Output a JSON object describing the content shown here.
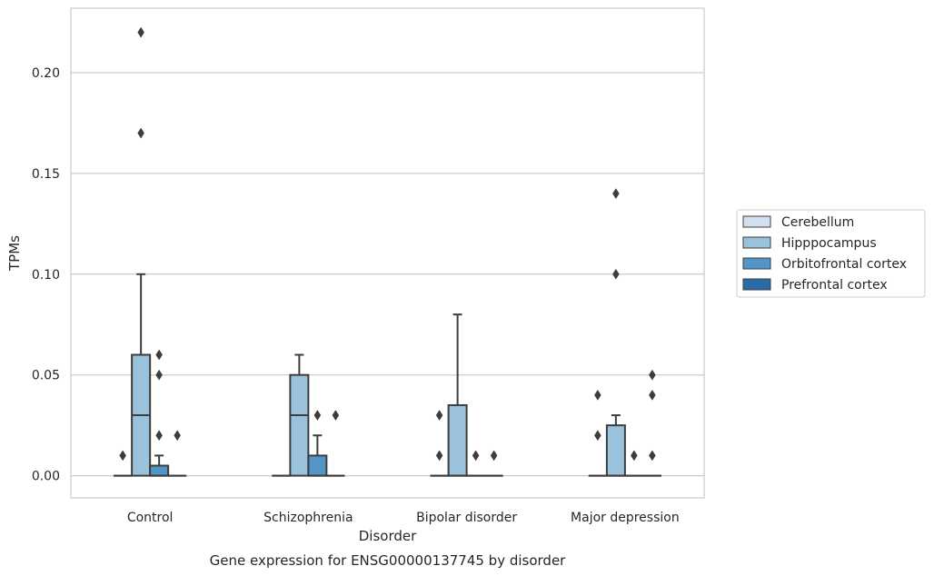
{
  "chart_data": {
    "type": "box",
    "title": "",
    "caption": "Gene expression for ENSG00000137745 by disorder",
    "xlabel": "Disorder",
    "ylabel": "TPMs",
    "ylim": [
      -0.011,
      0.232
    ],
    "yticks": [
      0.0,
      0.05,
      0.1,
      0.15,
      0.2
    ],
    "ytick_labels": [
      "0.00",
      "0.05",
      "0.10",
      "0.15",
      "0.20"
    ],
    "grid": true,
    "legend_position": "right",
    "categories": [
      "Control",
      "Schizophrenia",
      "Bipolar disorder",
      "Major depression"
    ],
    "series": [
      {
        "name": "Cerebellum",
        "color": "#d2e1ef",
        "boxes": [
          {
            "q1": 0,
            "median": 0,
            "q3": 0,
            "whisker_low": 0,
            "whisker_high": 0,
            "outliers": [
              0.01
            ]
          },
          {
            "q1": 0,
            "median": 0,
            "q3": 0,
            "whisker_low": 0,
            "whisker_high": 0,
            "outliers": []
          },
          {
            "q1": 0,
            "median": 0,
            "q3": 0,
            "whisker_low": 0,
            "whisker_high": 0,
            "outliers": [
              0.01,
              0.03
            ]
          },
          {
            "q1": 0,
            "median": 0,
            "q3": 0,
            "whisker_low": 0,
            "whisker_high": 0,
            "outliers": [
              0.02,
              0.04
            ]
          }
        ]
      },
      {
        "name": "Hipppocampus",
        "color": "#9ac2dc",
        "boxes": [
          {
            "q1": 0,
            "median": 0.03,
            "q3": 0.06,
            "whisker_low": 0,
            "whisker_high": 0.1,
            "outliers": [
              0.17,
              0.22
            ]
          },
          {
            "q1": 0,
            "median": 0.03,
            "q3": 0.05,
            "whisker_low": 0,
            "whisker_high": 0.06,
            "outliers": []
          },
          {
            "q1": 0,
            "median": 0,
            "q3": 0.035,
            "whisker_low": 0,
            "whisker_high": 0.08,
            "outliers": []
          },
          {
            "q1": 0,
            "median": 0,
            "q3": 0.025,
            "whisker_low": 0,
            "whisker_high": 0.03,
            "outliers": [
              0.1,
              0.14
            ]
          }
        ]
      },
      {
        "name": "Orbitofrontal cortex",
        "color": "#5395c6",
        "boxes": [
          {
            "q1": 0,
            "median": 0,
            "q3": 0.005,
            "whisker_low": 0,
            "whisker_high": 0.01,
            "outliers": [
              0.02,
              0.05,
              0.06
            ]
          },
          {
            "q1": 0,
            "median": 0,
            "q3": 0.01,
            "whisker_low": 0,
            "whisker_high": 0.02,
            "outliers": [
              0.03
            ]
          },
          {
            "q1": 0,
            "median": 0,
            "q3": 0,
            "whisker_low": 0,
            "whisker_high": 0,
            "outliers": [
              0.01
            ]
          },
          {
            "q1": 0,
            "median": 0,
            "q3": 0,
            "whisker_low": 0,
            "whisker_high": 0,
            "outliers": [
              0.01
            ]
          }
        ]
      },
      {
        "name": "Prefrontal cortex",
        "color": "#2a6aa6",
        "boxes": [
          {
            "q1": 0,
            "median": 0,
            "q3": 0,
            "whisker_low": 0,
            "whisker_high": 0,
            "outliers": [
              0.02
            ]
          },
          {
            "q1": 0,
            "median": 0,
            "q3": 0,
            "whisker_low": 0,
            "whisker_high": 0,
            "outliers": [
              0.03
            ]
          },
          {
            "q1": 0,
            "median": 0,
            "q3": 0,
            "whisker_low": 0,
            "whisker_high": 0,
            "outliers": [
              0.01
            ]
          },
          {
            "q1": 0,
            "median": 0,
            "q3": 0,
            "whisker_low": 0,
            "whisker_high": 0,
            "outliers": [
              0.01,
              0.04,
              0.05
            ]
          }
        ]
      }
    ]
  }
}
